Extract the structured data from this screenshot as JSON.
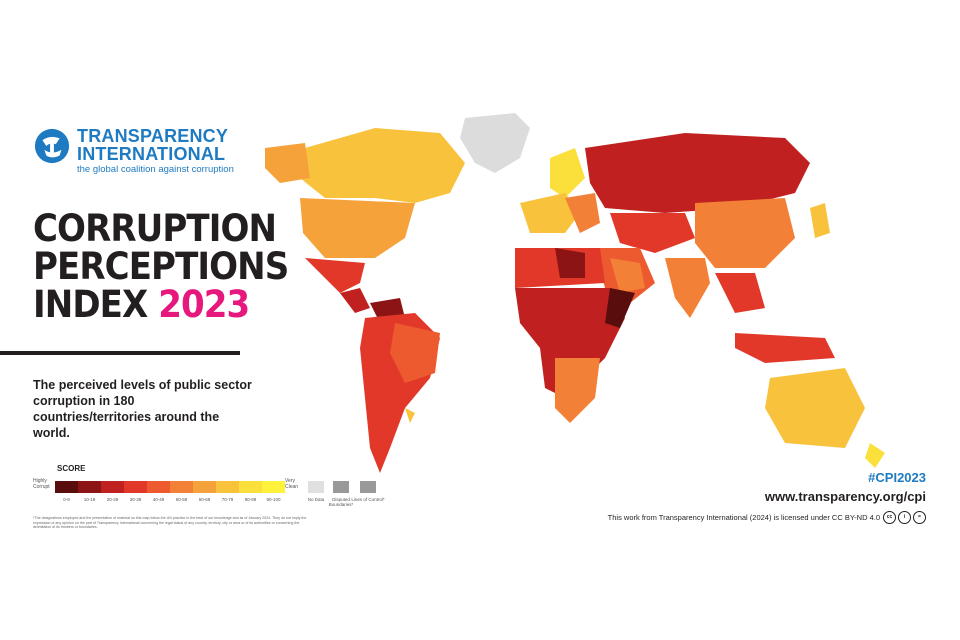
{
  "logo": {
    "line1": "TRANSPARENCY",
    "line2": "INTERNATIONAL",
    "tagline": "the global coalition against corruption"
  },
  "title": {
    "line1": "CORRUPTION",
    "line2": "PERCEPTIONS",
    "line3_prefix": "INDEX ",
    "year": "2023"
  },
  "description": "The perceived levels of public sector corruption in 180 countries/territories around the world.",
  "legend": {
    "title": "SCORE",
    "highly_corrupt": "Highly Corrupt",
    "very_clean": "Very Clean",
    "ranges": [
      "0-9",
      "10-19",
      "20-29",
      "30-39",
      "40-49",
      "50-59",
      "60-69",
      "70-79",
      "80-89",
      "90-100"
    ],
    "colors": [
      "#5a0d0d",
      "#8c1414",
      "#c0201f",
      "#e2382a",
      "#ee5a30",
      "#f28036",
      "#f5a23a",
      "#f8c23c",
      "#fbe03c",
      "#fff23a"
    ],
    "no_data": "No Data",
    "disputed": "Disputed Boundaries*",
    "lines_of_control": "Lines of Control*"
  },
  "footnote": "*The designations employed and the presentation of material on this map follow the UN practice to the best of our knowledge and as of January 2024. They do not imply the expression of any opinion on the part of Transparency International concerning the legal status of any country, territory, city or area or of its authorities or concerning the delimitation of its frontiers or boundaries.",
  "hashtag": "#CPI2023",
  "url": "www.transparency.org/cpi",
  "license": "This work from Transparency International (2024) is licensed under CC BY-ND 4.0",
  "cc_icons": [
    "cc-icon",
    "by-icon",
    "nd-icon"
  ]
}
